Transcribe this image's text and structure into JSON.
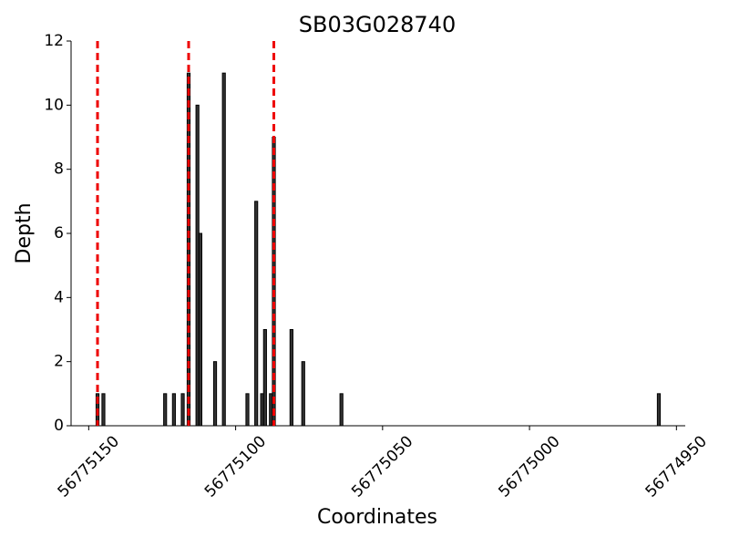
{
  "chart_data": {
    "type": "bar",
    "title": "SB03G028740",
    "xlabel": "Coordinates",
    "ylabel": "Depth",
    "x": [
      56775147,
      56775145,
      56775124,
      56775121,
      56775118,
      56775116,
      56775113,
      56775112,
      56775107,
      56775104,
      56775096,
      56775093,
      56775091,
      56775090,
      56775088,
      56775087,
      56775081,
      56775077,
      56775064,
      56774956
    ],
    "values": [
      1,
      1,
      1,
      1,
      1,
      11,
      10,
      6,
      2,
      11,
      1,
      7,
      1,
      3,
      1,
      9,
      3,
      2,
      1,
      1
    ],
    "color": "#333333",
    "vlines": [
      56775147,
      56775116,
      56775087
    ],
    "vline_color": "#ee0000",
    "xlim": [
      56775156,
      56774947
    ],
    "xticks": [
      56775150,
      56775100,
      56775050,
      56775000,
      56774950
    ],
    "ylim": [
      0,
      12
    ],
    "yticks": [
      0,
      2,
      4,
      6,
      8,
      10,
      12
    ]
  }
}
